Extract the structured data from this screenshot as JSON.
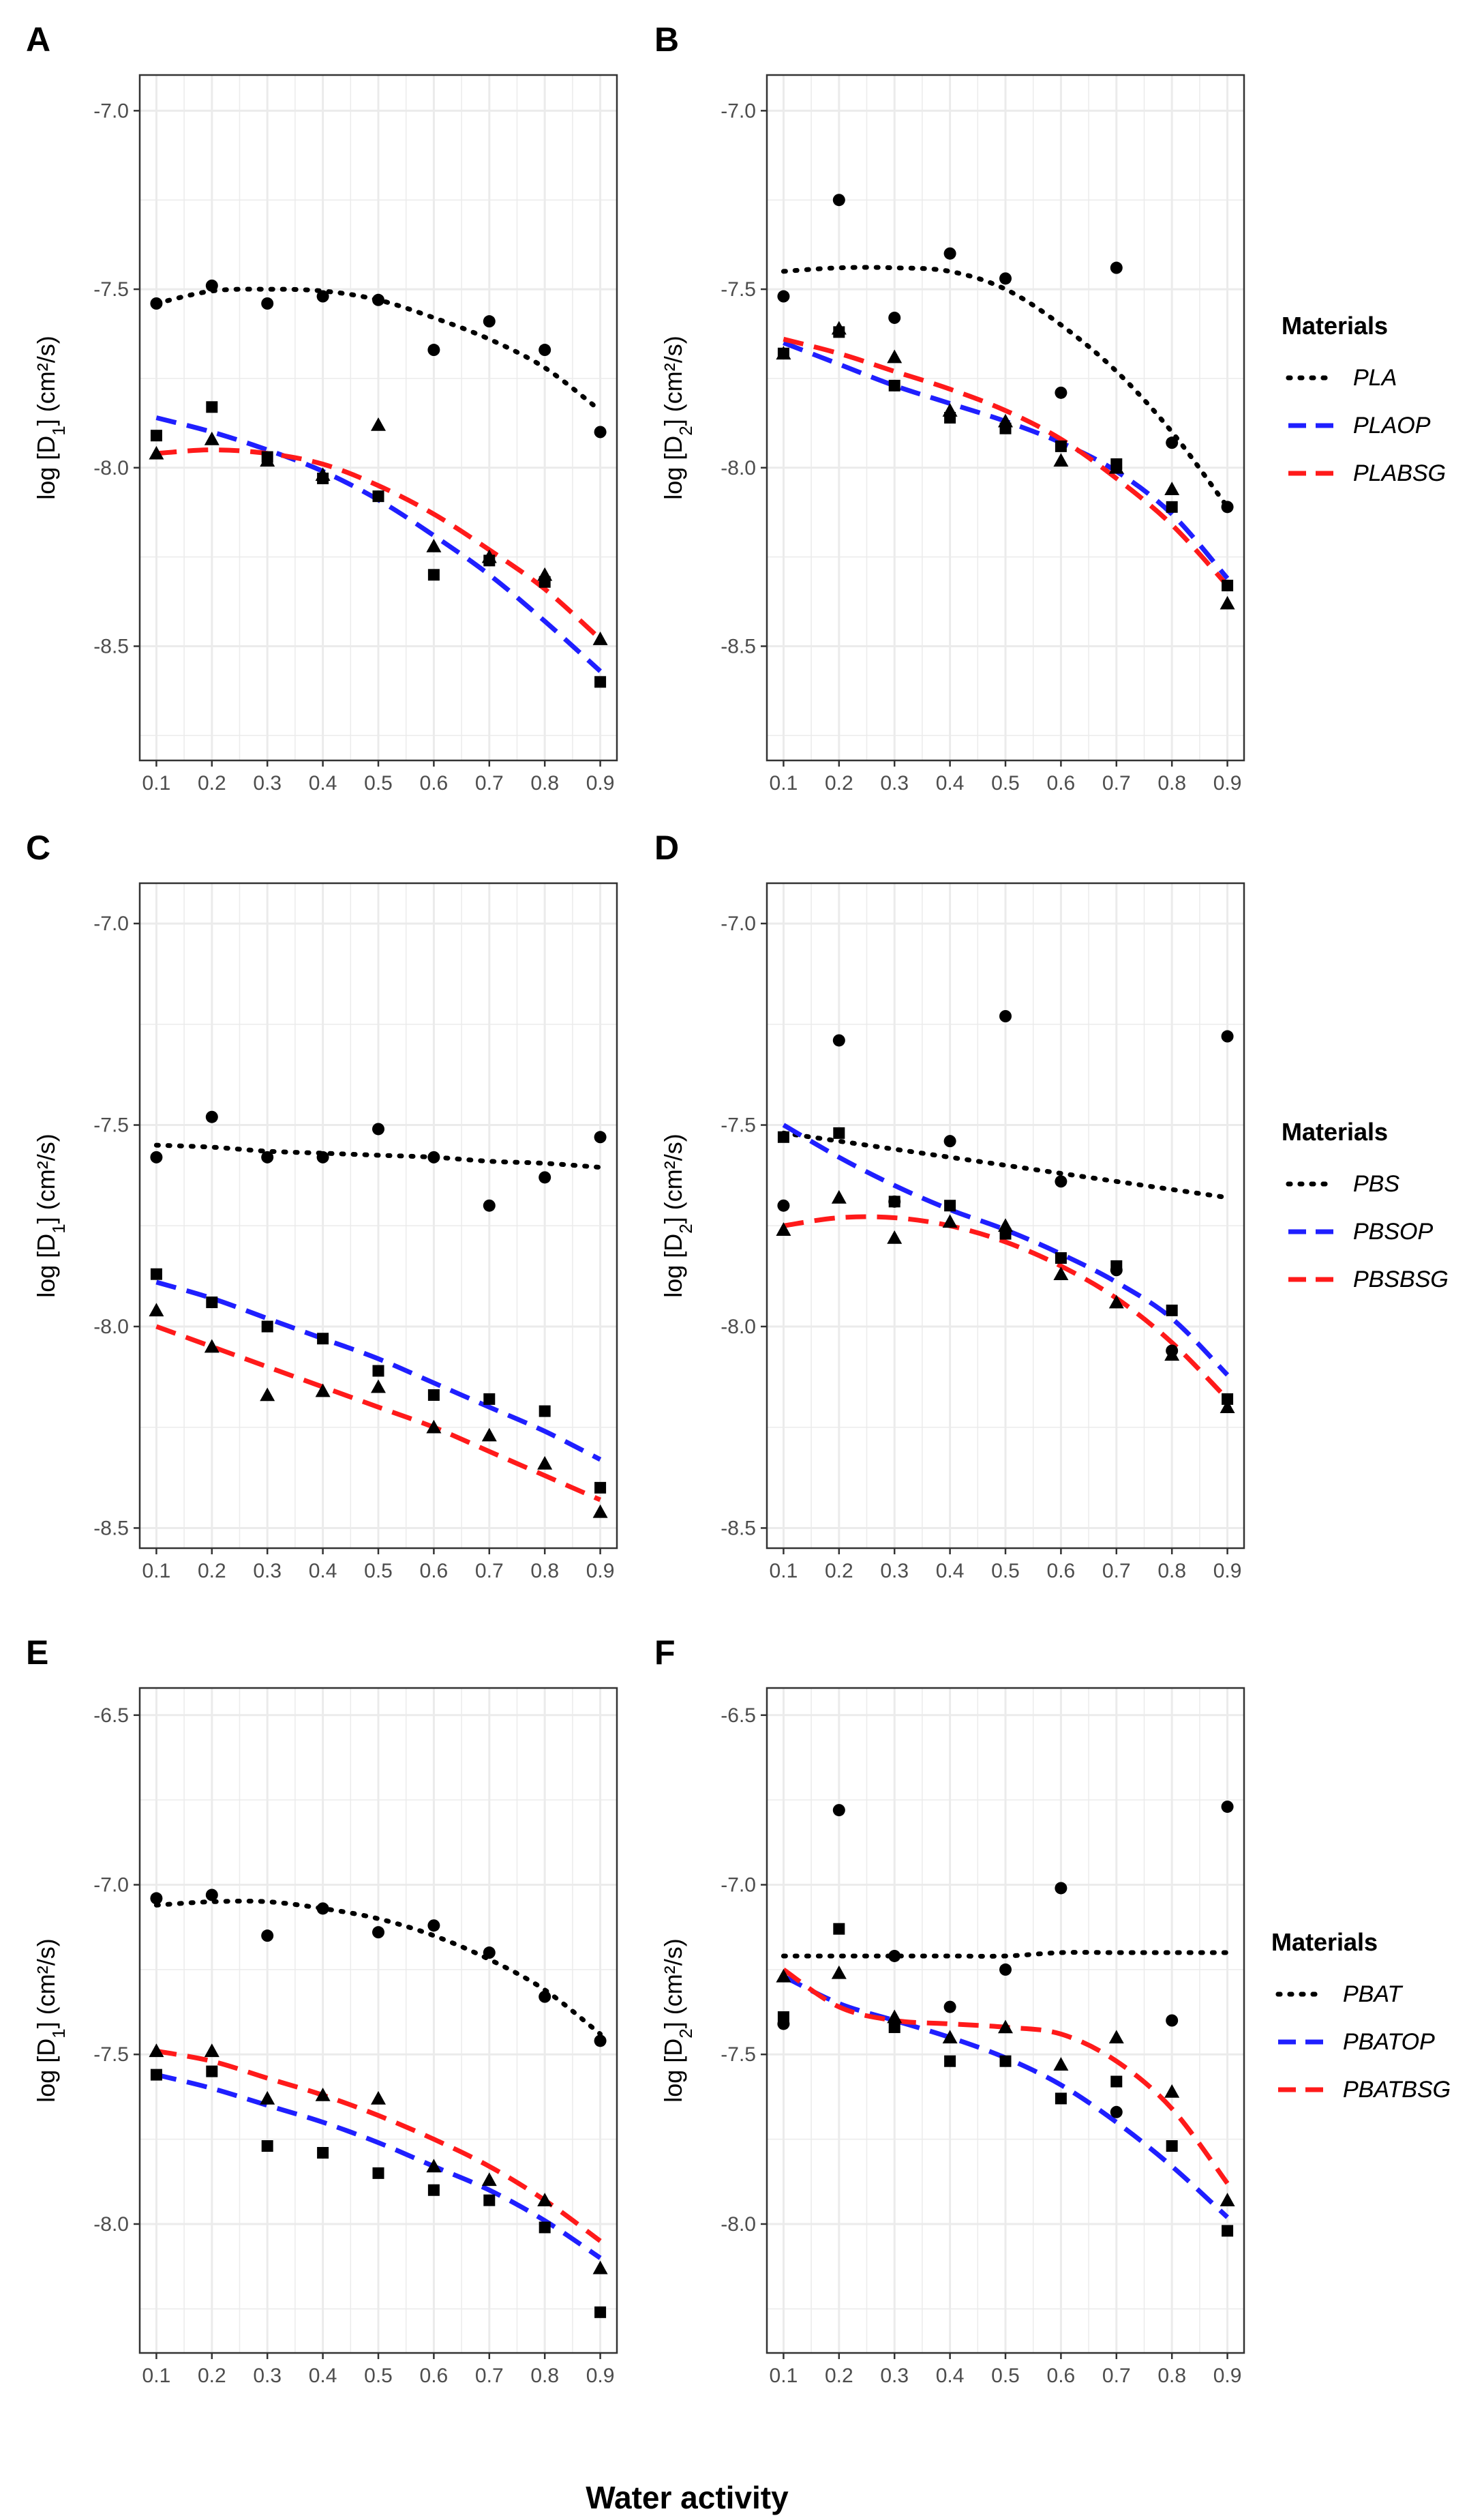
{
  "figure": {
    "xlabel": "Water activity",
    "colors": {
      "dotted": "#000000",
      "op": "#1f1fff",
      "bsg": "#ff1a1a",
      "grid": "#ebebeb",
      "points": "#000000"
    }
  },
  "chart_data": [
    {
      "type": "scatter",
      "panel": "A",
      "ylabel_main": "log [D",
      "ylabel_sub": "1",
      "ylabel_tail": "]  (cm²/s)",
      "xlabel": "Water activity",
      "x": [
        0.1,
        0.2,
        0.3,
        0.4,
        0.5,
        0.6,
        0.7,
        0.8,
        0.9
      ],
      "xticks": [
        "0.1",
        "0.2",
        "0.3",
        "0.4",
        "0.5",
        "0.6",
        "0.7",
        "0.8",
        "0.9"
      ],
      "xlim": [
        0.07,
        0.93
      ],
      "ylim": [
        -8.82,
        -6.9
      ],
      "yticks": [
        -7.0,
        -7.5,
        -8.0,
        -8.5
      ],
      "ytick_labels": [
        "-7.0",
        "-7.5",
        "-8.0",
        "-8.5"
      ],
      "legend": {
        "title": "Materials",
        "entries": [
          "PLA",
          "PLAOP",
          "PLABSG"
        ],
        "position": "right"
      },
      "series": [
        {
          "name": "PLA",
          "marker": "circle",
          "line": "dotted",
          "points": [
            -7.54,
            -7.49,
            -7.54,
            -7.52,
            -7.53,
            -7.67,
            -7.59,
            -7.67,
            -7.9
          ],
          "fit": [
            -7.54,
            -7.505,
            -7.5,
            -7.505,
            -7.53,
            -7.58,
            -7.64,
            -7.72,
            -7.84
          ]
        },
        {
          "name": "PLAOP",
          "marker": "square",
          "line": "dashed",
          "points": [
            -7.91,
            -7.83,
            -7.97,
            -8.03,
            -8.08,
            -8.3,
            -8.26,
            -8.32,
            -8.6
          ],
          "fit": [
            -7.86,
            -7.9,
            -7.95,
            -8.01,
            -8.09,
            -8.19,
            -8.3,
            -8.43,
            -8.57
          ]
        },
        {
          "name": "PLABSG",
          "marker": "triangle",
          "line": "dashed",
          "points": [
            -7.96,
            -7.92,
            -7.98,
            -8.02,
            -7.88,
            -8.22,
            -8.25,
            -8.3,
            -8.48
          ],
          "fit": [
            -7.96,
            -7.95,
            -7.96,
            -7.99,
            -8.05,
            -8.13,
            -8.23,
            -8.34,
            -8.48
          ]
        }
      ]
    },
    {
      "type": "scatter",
      "panel": "B",
      "ylabel_main": "log [D",
      "ylabel_sub": "2",
      "ylabel_tail": "]  (cm²/s)",
      "xlabel": "Water activity",
      "x": [
        0.1,
        0.2,
        0.3,
        0.4,
        0.5,
        0.6,
        0.7,
        0.8,
        0.9
      ],
      "xticks": [
        "0.1",
        "0.2",
        "0.3",
        "0.4",
        "0.5",
        "0.6",
        "0.7",
        "0.8",
        "0.9"
      ],
      "xlim": [
        0.07,
        0.93
      ],
      "ylim": [
        -8.82,
        -6.9
      ],
      "yticks": [
        -7.0,
        -7.5,
        -8.0,
        -8.5
      ],
      "ytick_labels": [
        "-7.0",
        "-7.5",
        "-8.0",
        "-8.5"
      ],
      "legend": {
        "title": "Materials",
        "entries": [
          "PLA",
          "PLAOP",
          "PLABSG"
        ],
        "position": "right"
      },
      "series": [
        {
          "name": "PLA",
          "marker": "circle",
          "line": "dotted",
          "points": [
            -7.52,
            -7.25,
            -7.58,
            -7.4,
            -7.47,
            -7.79,
            -7.44,
            -7.93,
            -8.11
          ],
          "fit": [
            -7.45,
            -7.44,
            -7.44,
            -7.45,
            -7.5,
            -7.6,
            -7.73,
            -7.9,
            -8.11
          ]
        },
        {
          "name": "PLAOP",
          "marker": "square",
          "line": "dashed",
          "points": [
            -7.68,
            -7.62,
            -7.77,
            -7.86,
            -7.89,
            -7.94,
            -7.99,
            -8.11,
            -8.33
          ],
          "fit": [
            -7.65,
            -7.71,
            -7.77,
            -7.82,
            -7.87,
            -7.93,
            -8.01,
            -8.13,
            -8.31
          ]
        },
        {
          "name": "PLABSG",
          "marker": "triangle",
          "line": "dashed",
          "points": [
            -7.68,
            -7.61,
            -7.69,
            -7.84,
            -7.87,
            -7.98,
            -8.0,
            -8.06,
            -8.38
          ],
          "fit": [
            -7.64,
            -7.68,
            -7.73,
            -7.78,
            -7.84,
            -7.92,
            -8.03,
            -8.16,
            -8.33
          ]
        }
      ]
    },
    {
      "type": "scatter",
      "panel": "C",
      "ylabel_main": "log [D",
      "ylabel_sub": "1",
      "ylabel_tail": "]  (cm²/s)",
      "xlabel": "Water activity",
      "x": [
        0.1,
        0.2,
        0.3,
        0.4,
        0.5,
        0.6,
        0.7,
        0.8,
        0.9
      ],
      "xticks": [
        "0.1",
        "0.2",
        "0.3",
        "0.4",
        "0.5",
        "0.6",
        "0.7",
        "0.8",
        "0.9"
      ],
      "xlim": [
        0.07,
        0.93
      ],
      "ylim": [
        -8.55,
        -6.9
      ],
      "yticks": [
        -7.0,
        -7.5,
        -8.0,
        -8.5
      ],
      "ytick_labels": [
        "-7.0",
        "-7.5",
        "-8.0",
        "-8.5"
      ],
      "legend": {
        "title": "Materials",
        "entries": [
          "PBS",
          "PBSOP",
          "PBSBSG"
        ],
        "position": "right"
      },
      "series": [
        {
          "name": "PBS",
          "marker": "circle",
          "line": "dotted",
          "points": [
            -7.58,
            -7.48,
            -7.58,
            -7.58,
            -7.51,
            -7.58,
            -7.7,
            -7.63,
            -7.53
          ],
          "fit": [
            -7.55,
            -7.555,
            -7.565,
            -7.57,
            -7.575,
            -7.58,
            -7.59,
            -7.595,
            -7.605
          ]
        },
        {
          "name": "PBSOP",
          "marker": "square",
          "line": "dashed",
          "points": [
            -7.87,
            -7.94,
            -8.0,
            -8.03,
            -8.11,
            -8.17,
            -8.18,
            -8.21,
            -8.4
          ],
          "fit": [
            -7.89,
            -7.93,
            -7.98,
            -8.03,
            -8.08,
            -8.14,
            -8.2,
            -8.26,
            -8.33
          ]
        },
        {
          "name": "PBSBSG",
          "marker": "triangle",
          "line": "dashed",
          "points": [
            -7.96,
            -8.05,
            -8.17,
            -8.16,
            -8.15,
            -8.25,
            -8.27,
            -8.34,
            -8.46
          ],
          "fit": [
            -8.0,
            -8.05,
            -8.1,
            -8.15,
            -8.2,
            -8.25,
            -8.31,
            -8.37,
            -8.43
          ]
        }
      ]
    },
    {
      "type": "scatter",
      "panel": "D",
      "ylabel_main": "log [D",
      "ylabel_sub": "2",
      "ylabel_tail": "]  (cm²/s)",
      "xlabel": "Water activity",
      "x": [
        0.1,
        0.2,
        0.3,
        0.4,
        0.5,
        0.6,
        0.7,
        0.8,
        0.9
      ],
      "xticks": [
        "0.1",
        "0.2",
        "0.3",
        "0.4",
        "0.5",
        "0.6",
        "0.7",
        "0.8",
        "0.9"
      ],
      "xlim": [
        0.07,
        0.93
      ],
      "ylim": [
        -8.55,
        -6.9
      ],
      "yticks": [
        -7.0,
        -7.5,
        -8.0,
        -8.5
      ],
      "ytick_labels": [
        "-7.0",
        "-7.5",
        "-8.0",
        "-8.5"
      ],
      "legend": {
        "title": "Materials",
        "entries": [
          "PBS",
          "PBSOP",
          "PBSBSG"
        ],
        "position": "right"
      },
      "series": [
        {
          "name": "PBS",
          "marker": "circle",
          "line": "dotted",
          "points": [
            -7.7,
            -7.29,
            -7.69,
            -7.54,
            -7.23,
            -7.64,
            -7.86,
            -8.06,
            -7.28
          ],
          "fit": [
            -7.52,
            -7.54,
            -7.56,
            -7.58,
            -7.6,
            -7.62,
            -7.64,
            -7.66,
            -7.68
          ]
        },
        {
          "name": "PBSOP",
          "marker": "square",
          "line": "dashed",
          "points": [
            -7.53,
            -7.52,
            -7.69,
            -7.7,
            -7.77,
            -7.83,
            -7.85,
            -7.96,
            -8.18
          ],
          "fit": [
            -7.5,
            -7.58,
            -7.65,
            -7.71,
            -7.76,
            -7.82,
            -7.89,
            -7.98,
            -8.12
          ]
        },
        {
          "name": "PBSBSG",
          "marker": "triangle",
          "line": "dashed",
          "points": [
            -7.76,
            -7.68,
            -7.78,
            -7.74,
            -7.75,
            -7.87,
            -7.94,
            -8.07,
            -8.2
          ],
          "fit": [
            -7.75,
            -7.73,
            -7.73,
            -7.75,
            -7.79,
            -7.85,
            -7.93,
            -8.04,
            -8.18
          ]
        }
      ]
    },
    {
      "type": "scatter",
      "panel": "E",
      "ylabel_main": "log [D",
      "ylabel_sub": "1",
      "ylabel_tail": "]  (cm²/s)",
      "xlabel": "Water activity",
      "x": [
        0.1,
        0.2,
        0.3,
        0.4,
        0.5,
        0.6,
        0.7,
        0.8,
        0.9
      ],
      "xticks": [
        "0.1",
        "0.2",
        "0.3",
        "0.4",
        "0.5",
        "0.6",
        "0.7",
        "0.8",
        "0.9"
      ],
      "xlim": [
        0.07,
        0.93
      ],
      "ylim": [
        -8.38,
        -6.42
      ],
      "yticks": [
        -6.5,
        -7.0,
        -7.5,
        -8.0
      ],
      "ytick_labels": [
        "-6.5",
        "-7.0",
        "-7.5",
        "-8.0"
      ],
      "legend": {
        "title": "Materials",
        "entries": [
          "PBAT",
          "PBATOP",
          "PBATBSG"
        ],
        "position": "right"
      },
      "series": [
        {
          "name": "PBAT",
          "marker": "circle",
          "line": "dotted",
          "points": [
            -7.04,
            -7.03,
            -7.15,
            -7.07,
            -7.14,
            -7.12,
            -7.2,
            -7.33,
            -7.46
          ],
          "fit": [
            -7.06,
            -7.05,
            -7.05,
            -7.07,
            -7.1,
            -7.15,
            -7.22,
            -7.31,
            -7.44
          ]
        },
        {
          "name": "PBATOP",
          "marker": "square",
          "line": "dashed",
          "points": [
            -7.56,
            -7.55,
            -7.77,
            -7.79,
            -7.85,
            -7.9,
            -7.93,
            -8.01,
            -8.26
          ],
          "fit": [
            -7.56,
            -7.6,
            -7.65,
            -7.7,
            -7.76,
            -7.83,
            -7.9,
            -7.99,
            -8.1
          ]
        },
        {
          "name": "PBATBSG",
          "marker": "triangle",
          "line": "dashed",
          "points": [
            -7.49,
            -7.49,
            -7.63,
            -7.62,
            -7.63,
            -7.83,
            -7.87,
            -7.93,
            -8.13
          ],
          "fit": [
            -7.49,
            -7.52,
            -7.57,
            -7.62,
            -7.68,
            -7.75,
            -7.83,
            -7.93,
            -8.05
          ]
        }
      ]
    },
    {
      "type": "scatter",
      "panel": "F",
      "ylabel_main": "log [D",
      "ylabel_sub": "2",
      "ylabel_tail": "]  (cm²/s)",
      "xlabel": "Water activity",
      "x": [
        0.1,
        0.2,
        0.3,
        0.4,
        0.5,
        0.6,
        0.7,
        0.8,
        0.9
      ],
      "xticks": [
        "0.1",
        "0.2",
        "0.3",
        "0.4",
        "0.5",
        "0.6",
        "0.7",
        "0.8",
        "0.9"
      ],
      "xlim": [
        0.07,
        0.93
      ],
      "ylim": [
        -8.38,
        -6.42
      ],
      "yticks": [
        -6.5,
        -7.0,
        -7.5,
        -8.0
      ],
      "ytick_labels": [
        "-6.5",
        "-7.0",
        "-7.5",
        "-8.0"
      ],
      "legend": {
        "title": "Materials",
        "entries": [
          "PBAT",
          "PBATOP",
          "PBATBSG"
        ],
        "position": "right"
      },
      "series": [
        {
          "name": "PBAT",
          "marker": "circle",
          "line": "dotted",
          "points": [
            -7.41,
            -6.78,
            -7.21,
            -7.36,
            -7.25,
            -7.01,
            -7.67,
            -7.4,
            -6.77
          ],
          "fit": [
            -7.21,
            -7.21,
            -7.21,
            -7.21,
            -7.21,
            -7.2,
            -7.2,
            -7.2,
            -7.2
          ]
        },
        {
          "name": "PBATOP",
          "marker": "square",
          "line": "dashed",
          "points": [
            -7.39,
            -7.13,
            -7.42,
            -7.52,
            -7.52,
            -7.63,
            -7.58,
            -7.77,
            -8.02
          ],
          "fit": [
            -7.27,
            -7.35,
            -7.4,
            -7.45,
            -7.51,
            -7.59,
            -7.7,
            -7.83,
            -7.98
          ]
        },
        {
          "name": "PBATBSG",
          "marker": "triangle",
          "line": "dashed",
          "points": [
            -7.27,
            -7.26,
            -7.39,
            -7.45,
            -7.42,
            -7.53,
            -7.45,
            -7.61,
            -7.93
          ],
          "fit": [
            -7.25,
            -7.36,
            -7.4,
            -7.41,
            -7.42,
            -7.44,
            -7.52,
            -7.66,
            -7.88
          ]
        }
      ]
    }
  ]
}
